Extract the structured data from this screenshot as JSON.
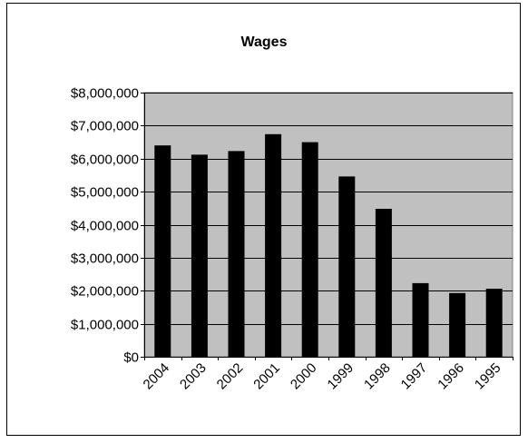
{
  "chart_data": {
    "type": "bar",
    "title": "Wages",
    "xlabel": "",
    "ylabel": "",
    "categories": [
      "2004",
      "2003",
      "2002",
      "2001",
      "2000",
      "1999",
      "1998",
      "1997",
      "1996",
      "1995"
    ],
    "values": [
      6400000,
      6120000,
      6230000,
      6740000,
      6500000,
      5460000,
      4480000,
      2230000,
      1930000,
      2060000
    ],
    "ylim": [
      0,
      8000000
    ],
    "yticks": [
      0,
      1000000,
      2000000,
      3000000,
      4000000,
      5000000,
      6000000,
      7000000,
      8000000
    ],
    "ytick_labels": [
      "$0",
      "$1,000,000",
      "$2,000,000",
      "$3,000,000",
      "$4,000,000",
      "$5,000,000",
      "$6,000,000",
      "$7,000,000",
      "$8,000,000"
    ],
    "grid": true,
    "legend": "none",
    "colors": {
      "bar": "#000000",
      "plot_background": "#c0c0c0",
      "gridline": "#000000",
      "page_background": "#ffffff"
    }
  }
}
